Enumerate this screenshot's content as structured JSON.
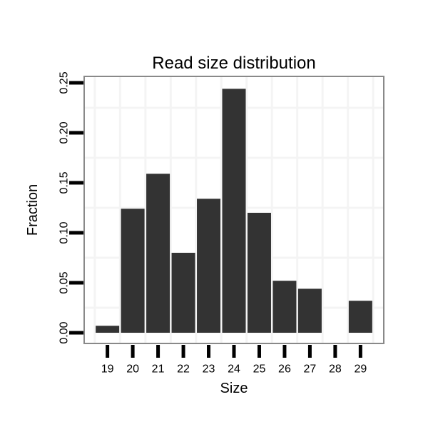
{
  "chart_data": {
    "type": "bar",
    "title": "Read size distribution",
    "xlabel": "Size",
    "ylabel": "Fraction",
    "categories": [
      19,
      20,
      21,
      22,
      23,
      24,
      25,
      26,
      27,
      28,
      29
    ],
    "values": [
      0.007,
      0.124,
      0.159,
      0.08,
      0.134,
      0.244,
      0.12,
      0.052,
      0.044,
      0.0,
      0.032
    ],
    "ytick_labels": [
      "0.00",
      "0.05",
      "0.10",
      "0.15",
      "0.20",
      "0.25"
    ],
    "ytick_values": [
      0.0,
      0.05,
      0.1,
      0.15,
      0.2,
      0.25
    ],
    "ylim": [
      -0.0107,
      0.2564
    ],
    "xlim": [
      18.08,
      29.92
    ],
    "bar_width": 0.93,
    "grid": {
      "vlines": [
        18.5,
        19.5,
        20.5,
        21.5,
        22.5,
        23.5,
        24.5,
        25.5,
        26.5,
        27.5,
        28.5,
        29.5
      ],
      "hlines": [
        0.025,
        0.075,
        0.125,
        0.175,
        0.225
      ]
    },
    "legend": "none",
    "ytick_labels_rotated": true,
    "colors": {
      "bar": "#333333",
      "grid": "#f4f4f4",
      "panel_border": "#898989",
      "tick": "#000000",
      "text": "#000000",
      "background": "#ffffff"
    }
  }
}
